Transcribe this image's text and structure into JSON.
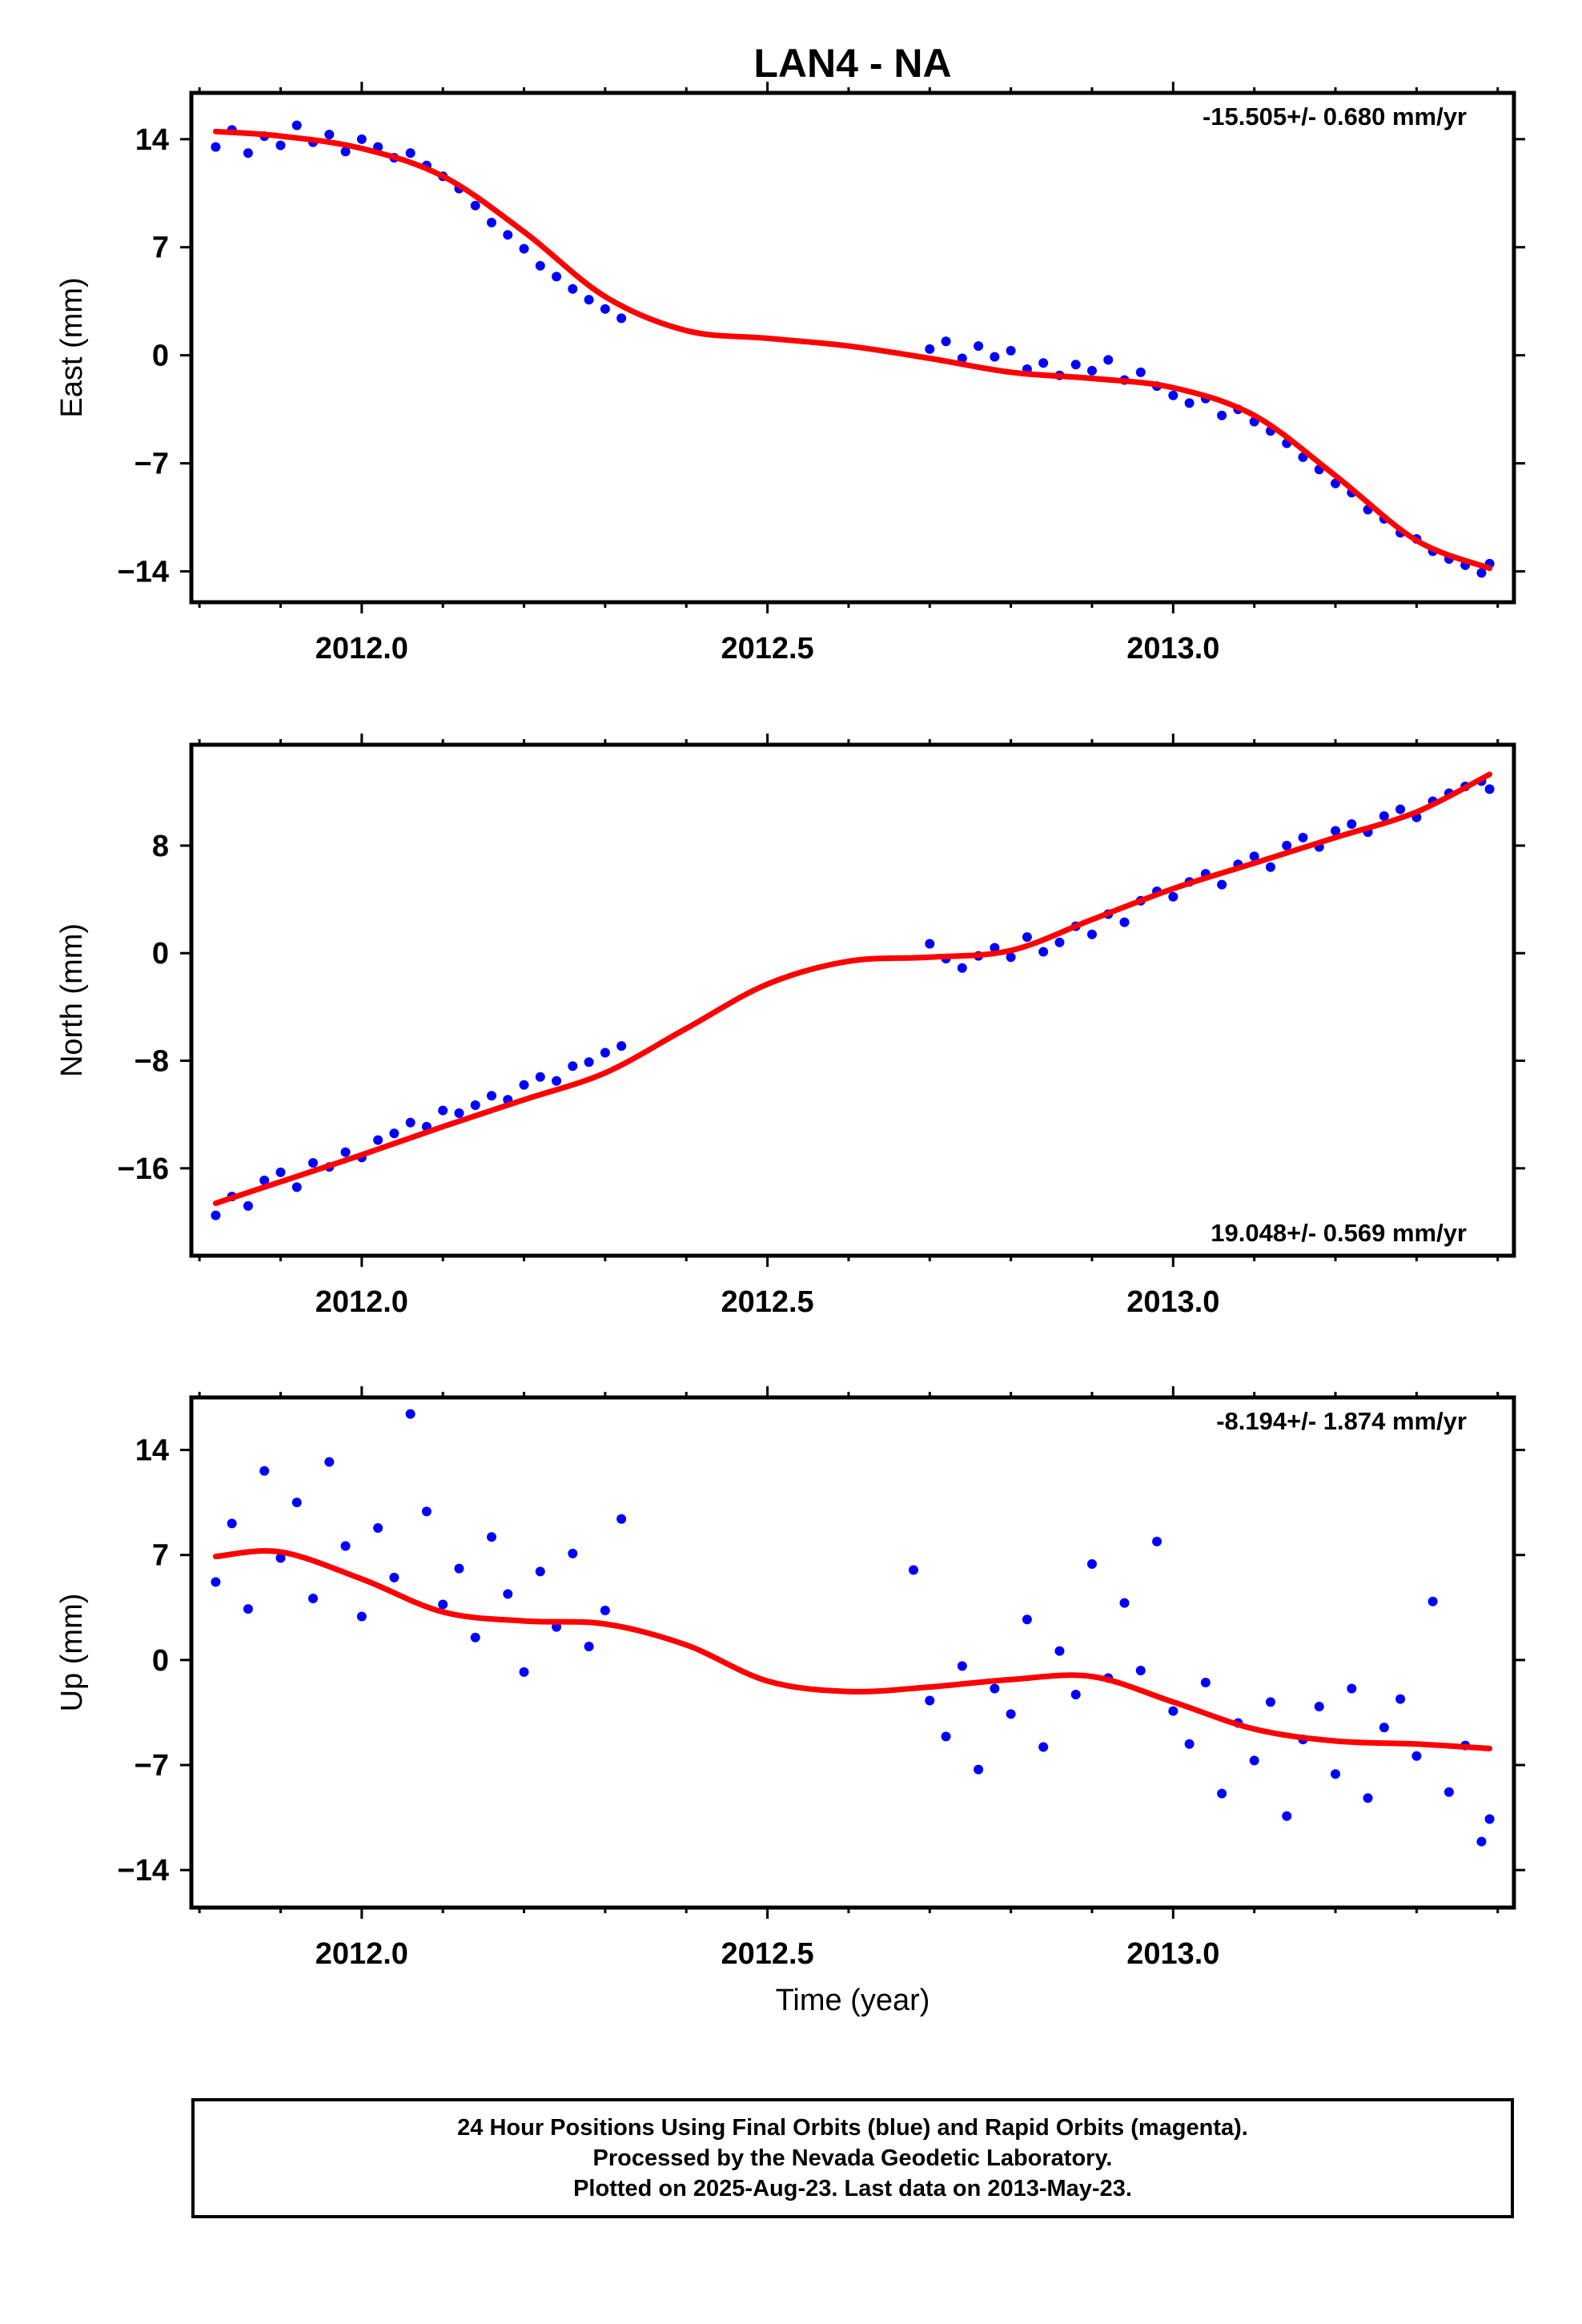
{
  "title": "LAN4 - NA",
  "x_ticks": [
    "2012.0",
    "2012.5",
    "2013.0"
  ],
  "xlabel": "Time (year)",
  "colors": {
    "data": "#0000ff",
    "fit": "#ff0000",
    "frame": "#000000"
  },
  "chart_data": [
    {
      "type": "scatter",
      "ylabel": "East (mm)",
      "rate": "-15.505+/- 0.680 mm/yr",
      "rate_position": "top-right",
      "xlim": [
        2011.79,
        2013.42
      ],
      "ylim": [
        -16,
        17
      ],
      "yticks": [
        14,
        7,
        0,
        -7,
        -14
      ],
      "ytick_labels": [
        "14",
        "7",
        "0",
        "−7",
        "−14"
      ],
      "series": [
        {
          "role": "data",
          "x": [
            2011.82,
            2011.84,
            2011.86,
            2011.88,
            2011.9,
            2011.92,
            2011.94,
            2011.96,
            2011.98,
            2012.0,
            2012.02,
            2012.04,
            2012.06,
            2012.08,
            2012.1,
            2012.12,
            2012.14,
            2012.16,
            2012.18,
            2012.2,
            2012.22,
            2012.24,
            2012.26,
            2012.28,
            2012.3,
            2012.32,
            2012.7,
            2012.72,
            2012.74,
            2012.76,
            2012.78,
            2012.8,
            2012.82,
            2012.84,
            2012.86,
            2012.88,
            2012.9,
            2012.92,
            2012.94,
            2012.96,
            2012.98,
            2013.0,
            2013.02,
            2013.04,
            2013.06,
            2013.08,
            2013.1,
            2013.12,
            2013.14,
            2013.16,
            2013.18,
            2013.2,
            2013.22,
            2013.24,
            2013.26,
            2013.28,
            2013.3,
            2013.32,
            2013.34,
            2013.36,
            2013.38,
            2013.39
          ],
          "y": [
            13.5,
            14.6,
            13.1,
            14.2,
            13.6,
            14.9,
            13.8,
            14.3,
            13.2,
            14.0,
            13.5,
            12.8,
            13.1,
            12.3,
            11.6,
            10.8,
            9.7,
            8.6,
            7.8,
            6.9,
            5.8,
            5.1,
            4.3,
            3.6,
            3.0,
            2.4,
            0.4,
            0.9,
            -0.2,
            0.6,
            -0.1,
            0.3,
            -0.9,
            -0.5,
            -1.3,
            -0.6,
            -1.0,
            -0.3,
            -1.6,
            -1.1,
            -2.0,
            -2.6,
            -3.1,
            -2.8,
            -3.9,
            -3.5,
            -4.3,
            -4.9,
            -5.7,
            -6.6,
            -7.4,
            -8.3,
            -8.9,
            -10.0,
            -10.6,
            -11.5,
            -11.9,
            -12.7,
            -13.2,
            -13.6,
            -14.1,
            -13.5
          ]
        },
        {
          "role": "fit",
          "x": [
            2011.82,
            2011.9,
            2012.0,
            2012.1,
            2012.2,
            2012.3,
            2012.4,
            2012.5,
            2012.6,
            2012.7,
            2012.8,
            2012.9,
            2013.0,
            2013.1,
            2013.2,
            2013.3,
            2013.39
          ],
          "y": [
            14.5,
            14.2,
            13.4,
            11.6,
            8.0,
            3.8,
            1.6,
            1.1,
            0.6,
            -0.2,
            -1.1,
            -1.5,
            -2.1,
            -3.9,
            -7.8,
            -12.0,
            -13.8
          ]
        }
      ]
    },
    {
      "type": "scatter",
      "ylabel": "North (mm)",
      "rate": "19.048+/- 0.569 mm/yr",
      "rate_position": "bottom-right",
      "xlim": [
        2011.79,
        2013.42
      ],
      "ylim": [
        -22.5,
        15.5
      ],
      "yticks": [
        8,
        0,
        -8,
        -16
      ],
      "ytick_labels": [
        "8",
        "0",
        "−8",
        "−16"
      ],
      "series": [
        {
          "role": "data",
          "x": [
            2011.82,
            2011.84,
            2011.86,
            2011.88,
            2011.9,
            2011.92,
            2011.94,
            2011.96,
            2011.98,
            2012.0,
            2012.02,
            2012.04,
            2012.06,
            2012.08,
            2012.1,
            2012.12,
            2012.14,
            2012.16,
            2012.18,
            2012.2,
            2012.22,
            2012.24,
            2012.26,
            2012.28,
            2012.3,
            2012.32,
            2012.7,
            2012.72,
            2012.74,
            2012.76,
            2012.78,
            2012.8,
            2012.82,
            2012.84,
            2012.86,
            2012.88,
            2012.9,
            2012.92,
            2012.94,
            2012.96,
            2012.98,
            2013.0,
            2013.02,
            2013.04,
            2013.06,
            2013.08,
            2013.1,
            2013.12,
            2013.14,
            2013.16,
            2013.18,
            2013.2,
            2013.22,
            2013.24,
            2013.26,
            2013.28,
            2013.3,
            2013.32,
            2013.34,
            2013.36,
            2013.38,
            2013.39
          ],
          "y": [
            -19.5,
            -18.1,
            -18.8,
            -16.9,
            -16.3,
            -17.4,
            -15.6,
            -15.9,
            -14.8,
            -15.2,
            -13.9,
            -13.4,
            -12.6,
            -12.9,
            -11.7,
            -11.9,
            -11.3,
            -10.6,
            -10.9,
            -9.8,
            -9.2,
            -9.5,
            -8.4,
            -8.1,
            -7.4,
            -6.9,
            0.7,
            -0.4,
            -1.1,
            -0.2,
            0.4,
            -0.3,
            1.2,
            0.1,
            0.8,
            2.0,
            1.4,
            2.9,
            2.3,
            3.9,
            4.6,
            4.2,
            5.3,
            5.9,
            5.1,
            6.6,
            7.2,
            6.4,
            8.0,
            8.6,
            7.9,
            9.1,
            9.6,
            9.0,
            10.2,
            10.7,
            10.1,
            11.3,
            11.9,
            12.4,
            12.8,
            12.2
          ]
        },
        {
          "role": "fit",
          "x": [
            2011.82,
            2011.9,
            2012.0,
            2012.1,
            2012.2,
            2012.3,
            2012.4,
            2012.5,
            2012.6,
            2012.7,
            2012.8,
            2012.9,
            2013.0,
            2013.1,
            2013.2,
            2013.3,
            2013.39
          ],
          "y": [
            -18.6,
            -17.0,
            -15.0,
            -12.9,
            -10.9,
            -8.9,
            -5.6,
            -2.3,
            -0.6,
            -0.3,
            0.2,
            2.5,
            4.8,
            6.7,
            8.6,
            10.5,
            13.3
          ]
        }
      ]
    },
    {
      "type": "scatter",
      "ylabel": "Up (mm)",
      "rate": "-8.194+/- 1.874 mm/yr",
      "rate_position": "top-right",
      "xlim": [
        2011.79,
        2013.42
      ],
      "ylim": [
        -16.5,
        17.5
      ],
      "yticks": [
        14,
        7,
        0,
        -7,
        -14
      ],
      "ytick_labels": [
        "14",
        "7",
        "0",
        "−7",
        "−14"
      ],
      "series": [
        {
          "role": "data",
          "x": [
            2011.82,
            2011.84,
            2011.86,
            2011.88,
            2011.9,
            2011.92,
            2011.94,
            2011.96,
            2011.98,
            2012.0,
            2012.02,
            2012.04,
            2012.06,
            2012.08,
            2012.1,
            2012.12,
            2012.14,
            2012.16,
            2012.18,
            2012.2,
            2012.22,
            2012.24,
            2012.26,
            2012.28,
            2012.3,
            2012.32,
            2012.68,
            2012.7,
            2012.72,
            2012.74,
            2012.76,
            2012.78,
            2012.8,
            2012.82,
            2012.84,
            2012.86,
            2012.88,
            2012.9,
            2012.92,
            2012.94,
            2012.96,
            2012.98,
            2013.0,
            2013.02,
            2013.04,
            2013.06,
            2013.08,
            2013.1,
            2013.12,
            2013.14,
            2013.16,
            2013.18,
            2013.2,
            2013.22,
            2013.24,
            2013.26,
            2013.28,
            2013.3,
            2013.32,
            2013.34,
            2013.36,
            2013.38,
            2013.39
          ],
          "y": [
            5.2,
            9.1,
            3.4,
            12.6,
            6.8,
            10.5,
            4.1,
            13.2,
            7.6,
            2.9,
            8.8,
            5.5,
            16.4,
            9.9,
            3.7,
            6.1,
            1.5,
            8.2,
            4.4,
            -0.8,
            5.9,
            2.2,
            7.1,
            0.9,
            3.3,
            9.4,
            6.0,
            -2.7,
            -5.1,
            -0.4,
            -7.3,
            -1.9,
            -3.6,
            2.7,
            -5.8,
            0.6,
            -2.3,
            6.4,
            -1.2,
            3.8,
            -0.7,
            7.9,
            -3.4,
            -5.6,
            -1.5,
            -8.9,
            -4.2,
            -6.7,
            -2.8,
            -10.4,
            -5.3,
            -3.1,
            -7.6,
            -1.9,
            -9.2,
            -4.5,
            -2.6,
            -6.4,
            3.9,
            -8.8,
            -5.7,
            -12.1,
            -10.6
          ]
        },
        {
          "role": "fit",
          "x": [
            2011.82,
            2011.9,
            2012.0,
            2012.1,
            2012.2,
            2012.3,
            2012.4,
            2012.5,
            2012.6,
            2012.7,
            2012.8,
            2012.9,
            2013.0,
            2013.1,
            2013.2,
            2013.3,
            2013.39
          ],
          "y": [
            6.9,
            7.2,
            5.4,
            3.2,
            2.6,
            2.4,
            1.0,
            -1.4,
            -2.1,
            -1.8,
            -1.3,
            -1.1,
            -2.8,
            -4.6,
            -5.4,
            -5.6,
            -5.9
          ]
        }
      ]
    }
  ],
  "footer": {
    "line1": "24 Hour Positions Using Final Orbits (blue) and Rapid Orbits (magenta).",
    "line2": "Processed by the Nevada Geodetic Laboratory.",
    "line3": "Plotted on 2025-Aug-23. Last data on 2013-May-23."
  }
}
